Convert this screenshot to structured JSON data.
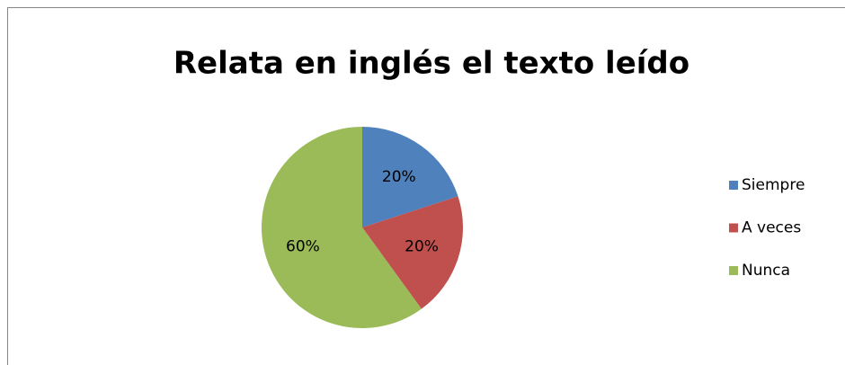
{
  "chart_data": {
    "type": "pie",
    "title": "Relata en inglés el texto leído",
    "categories": [
      "Siempre",
      "A veces",
      "Nunca"
    ],
    "values": [
      20,
      20,
      60
    ],
    "value_labels": [
      "20%",
      "20%",
      "60%"
    ],
    "colors": [
      "#4f81bd",
      "#c0504d",
      "#9bbb59"
    ],
    "legend": "right"
  }
}
